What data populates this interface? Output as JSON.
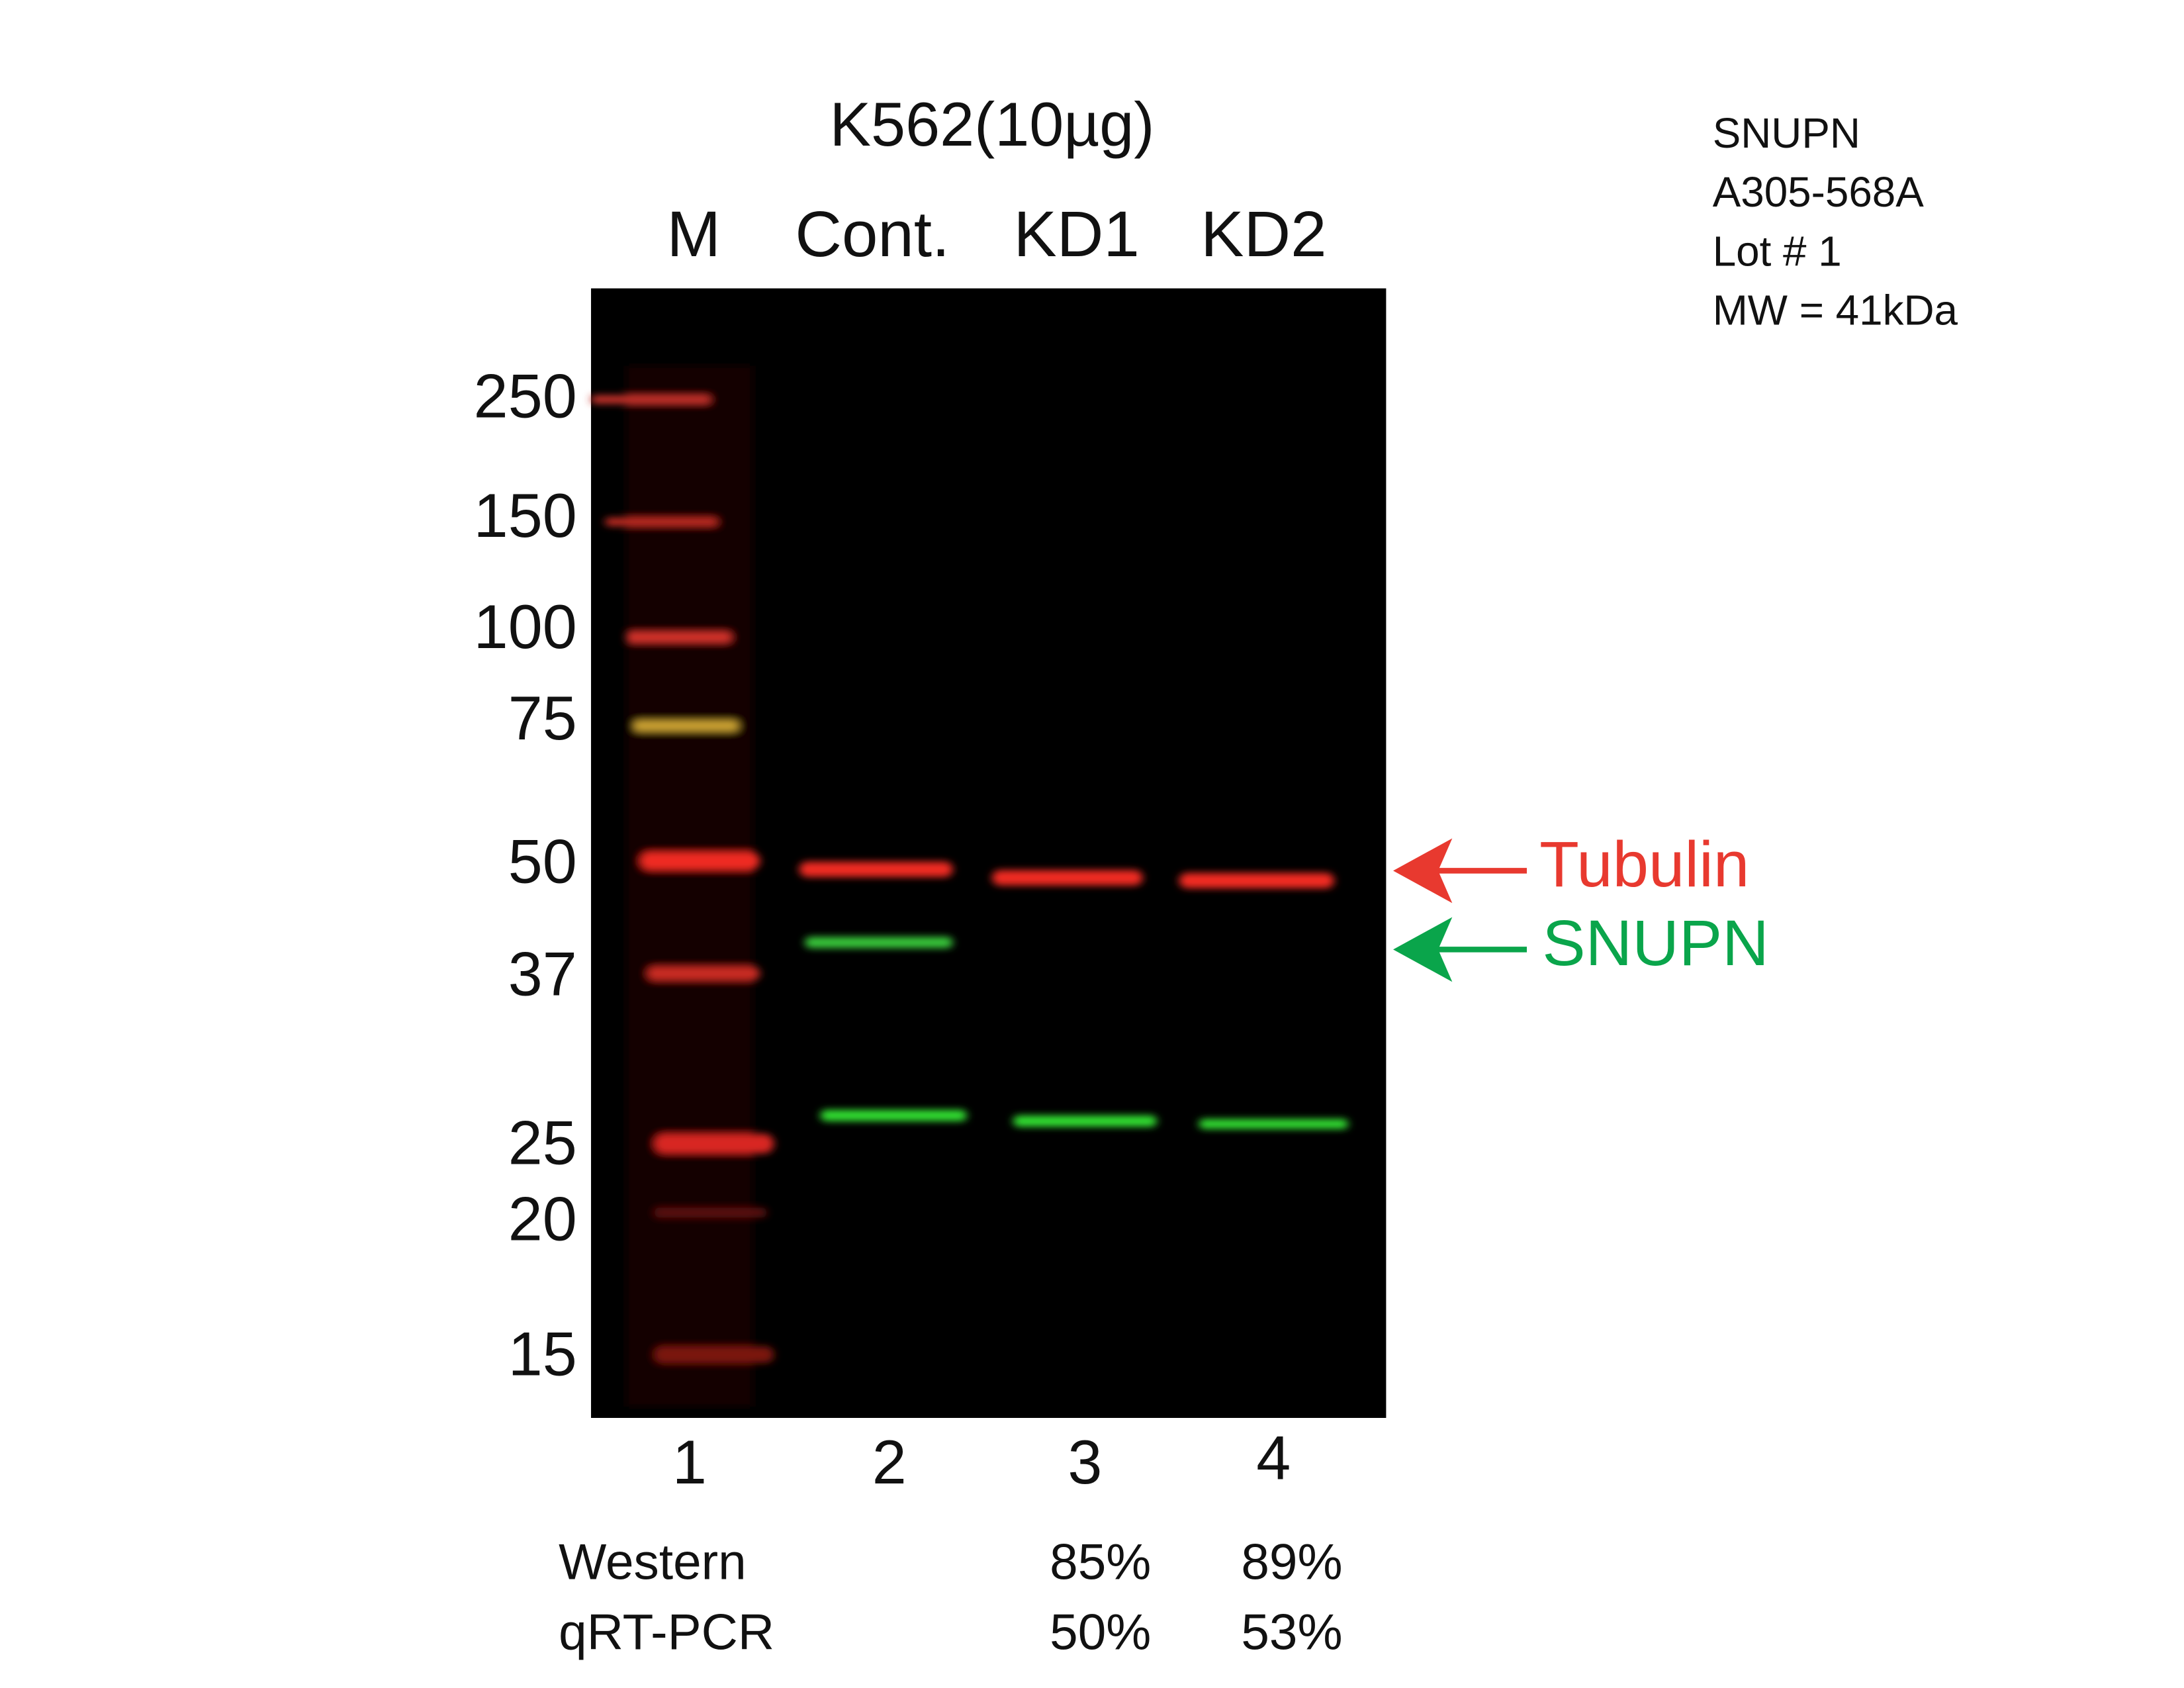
{
  "header": {
    "title": "K562(10µg)",
    "lanes": [
      "M",
      "Cont.",
      "KD1",
      "KD2"
    ]
  },
  "info": [
    "SNUPN",
    "A305-568A",
    "Lot # 1",
    "MW = 41kDa"
  ],
  "markers": [
    "250",
    "150",
    "100",
    "75",
    "50",
    "37",
    "25",
    "20",
    "15"
  ],
  "arrows": {
    "tubulin": "Tubulin",
    "target": "SNUPN"
  },
  "lane_numbers": [
    "1",
    "2",
    "3",
    "4"
  ],
  "knockdown": {
    "rows": [
      {
        "label": "Western",
        "kd1": "85%",
        "kd2": "89%"
      },
      {
        "label": "qRT-PCR",
        "kd1": "50%",
        "kd2": "53%"
      }
    ]
  }
}
